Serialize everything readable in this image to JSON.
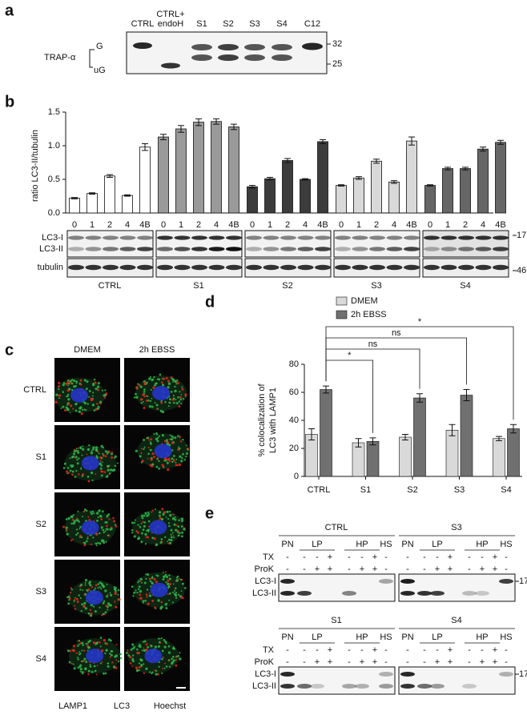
{
  "panel_labels": [
    "a",
    "b",
    "c",
    "d",
    "e"
  ],
  "panel_a": {
    "lanes": [
      "CTRL",
      "CTRL+ endoH",
      "S1",
      "S2",
      "S3",
      "S4",
      "C12"
    ],
    "protein": "TRAP-α",
    "forms": [
      "G",
      "uG"
    ],
    "markers": [
      "32",
      "25"
    ]
  },
  "panel_b_blot": {
    "bands": [
      "LC3-I",
      "LC3-II"
    ],
    "loading": "tubulin",
    "markers": [
      "17",
      "46"
    ]
  },
  "chart_data": [
    {
      "type": "bar",
      "ylabel": "ratio LC3-II/tubulin",
      "categories": [
        "0",
        "1",
        "2",
        "4",
        "4B"
      ],
      "series": [
        {
          "name": "CTRL",
          "color": "#ffffff",
          "values": [
            0.22,
            0.29,
            0.55,
            0.26,
            0.98
          ],
          "errors": [
            0.01,
            0.01,
            0.02,
            0.01,
            0.05
          ]
        },
        {
          "name": "S1",
          "color": "#9a9a9a",
          "values": [
            1.13,
            1.25,
            1.35,
            1.36,
            1.28
          ],
          "errors": [
            0.04,
            0.05,
            0.05,
            0.04,
            0.04
          ]
        },
        {
          "name": "S2",
          "color": "#3c3c3c",
          "values": [
            0.39,
            0.51,
            0.78,
            0.5,
            1.06
          ],
          "errors": [
            0.02,
            0.02,
            0.03,
            0.01,
            0.03
          ]
        },
        {
          "name": "S3",
          "color": "#d9d9d9",
          "values": [
            0.41,
            0.52,
            0.77,
            0.46,
            1.07
          ],
          "errors": [
            0.01,
            0.02,
            0.03,
            0.02,
            0.06
          ]
        },
        {
          "name": "S4",
          "color": "#666666",
          "values": [
            0.41,
            0.66,
            0.66,
            0.95,
            1.05
          ],
          "errors": [
            0.01,
            0.02,
            0.02,
            0.03,
            0.03
          ]
        }
      ],
      "ylim": [
        0,
        1.5
      ],
      "yticks": [
        {
          "value": 0,
          "label": "0.0"
        },
        0.5,
        {
          "value": 1,
          "label": "1.0"
        },
        1.5
      ]
    },
    {
      "type": "bar",
      "ylabel": [
        "% colocalization of",
        "LC3 with LAMP1"
      ],
      "categories": [
        "CTRL",
        "S1",
        "S2",
        "S3",
        "S4"
      ],
      "series": [
        {
          "name": "DMEM",
          "color": "#d9d9d9",
          "values": [
            30,
            24,
            28,
            33,
            27
          ],
          "errors": [
            4,
            3,
            2,
            4,
            1.5
          ]
        },
        {
          "name": "2h EBSS",
          "color": "#707070",
          "values": [
            62,
            25,
            56,
            58,
            34
          ],
          "errors": [
            2.5,
            2.5,
            3,
            4,
            3
          ]
        }
      ],
      "ylim": [
        0,
        80
      ],
      "yticks": [
        0,
        20,
        40,
        60,
        80
      ],
      "legend": "upper right",
      "annotations": [
        "*",
        "ns",
        "ns",
        "*"
      ]
    }
  ],
  "panel_c": {
    "columns": [
      "DMEM",
      "2h EBSS"
    ],
    "rows": [
      "CTRL",
      "S1",
      "S2",
      "S3",
      "S4"
    ],
    "channels": [
      {
        "name": "LAMP1",
        "color": "#2fb34a"
      },
      {
        "name": "LC3",
        "color": "#e0261b"
      },
      {
        "name": "Hoechst",
        "color": "#2535c8"
      }
    ]
  },
  "panel_e": {
    "blots": [
      "CTRL",
      "S3",
      "S1",
      "S4"
    ],
    "columns": [
      "PN",
      "LP",
      "HP",
      "HS"
    ],
    "rows": [
      {
        "name": "TX",
        "signs": [
          "-",
          "-",
          "-",
          "+",
          "-",
          "-",
          "+",
          "-"
        ]
      },
      {
        "name": "ProK",
        "signs": [
          "-",
          "-",
          "+",
          "+",
          "-",
          "+",
          "+",
          "-"
        ]
      }
    ],
    "bands": [
      "LC3-I",
      "LC3-II"
    ],
    "marker": "17"
  }
}
